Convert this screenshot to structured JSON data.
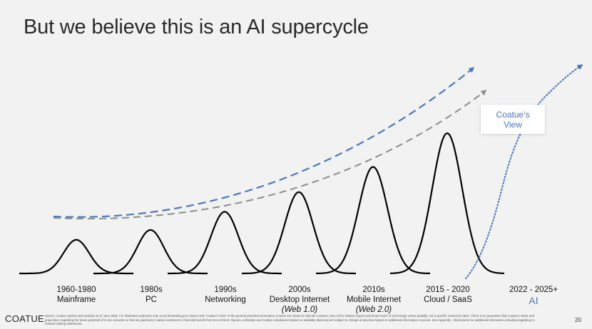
{
  "slide": {
    "title": "But we believe this is an AI supercycle",
    "page_number": "20",
    "logo": "COATUE",
    "footnote": "Source: Coatue opinion and analysis as of June 2025. For illustrative purposes only. Lines illustrating prior waves and \"Coatue's View\" of the general potential Generative AI wave are meant to indicate Coatue's view of the relative impact and broad reach of technology waves globally, not a specific numerical value. There is no guarantee that Coatue's views and projections regarding the future potential of AI are accurate or that any particular Coatue investment or fund will benefit from the AI trend. Figures, estimates and Coatue calculations based on available data and are subject to change at any time based on additional information received. See Appendix - Disclosures for additional information including regarding AI, forward looking statements."
  },
  "callout": {
    "text_line1": "Coatue's",
    "text_line2": "View"
  },
  "colors": {
    "wave": "#000000",
    "trend_blue": "#4a78bb",
    "trend_gray": "#8c8c8c",
    "ai_accent": "#4a78bb",
    "background": "#f2f2f2"
  },
  "waves": [
    {
      "era": "1960-1980",
      "name": "Mainframe",
      "sub": "",
      "relative_height": 0.24
    },
    {
      "era": "1980s",
      "name": "PC",
      "sub": "",
      "relative_height": 0.31
    },
    {
      "era": "1990s",
      "name": "Networking",
      "sub": "",
      "relative_height": 0.44
    },
    {
      "era": "2000s",
      "name": "Desktop Internet",
      "sub": "(Web 1.0)",
      "relative_height": 0.58
    },
    {
      "era": "2010s",
      "name": "Mobile Internet",
      "sub": "(Web 2.0)",
      "relative_height": 0.76
    },
    {
      "era": "2015 - 2020",
      "name": "Cloud / SaaS",
      "sub": "",
      "relative_height": 1.0
    }
  ],
  "ai_wave": {
    "era": "2022 - 2025+",
    "name": "AI",
    "style": "dotted",
    "trend": "steep-rising"
  },
  "trend_lines": [
    {
      "name": "upper-trend",
      "style": "dashed",
      "color_key": "trend_blue"
    },
    {
      "name": "lower-trend",
      "style": "dashed",
      "color_key": "trend_gray"
    }
  ]
}
